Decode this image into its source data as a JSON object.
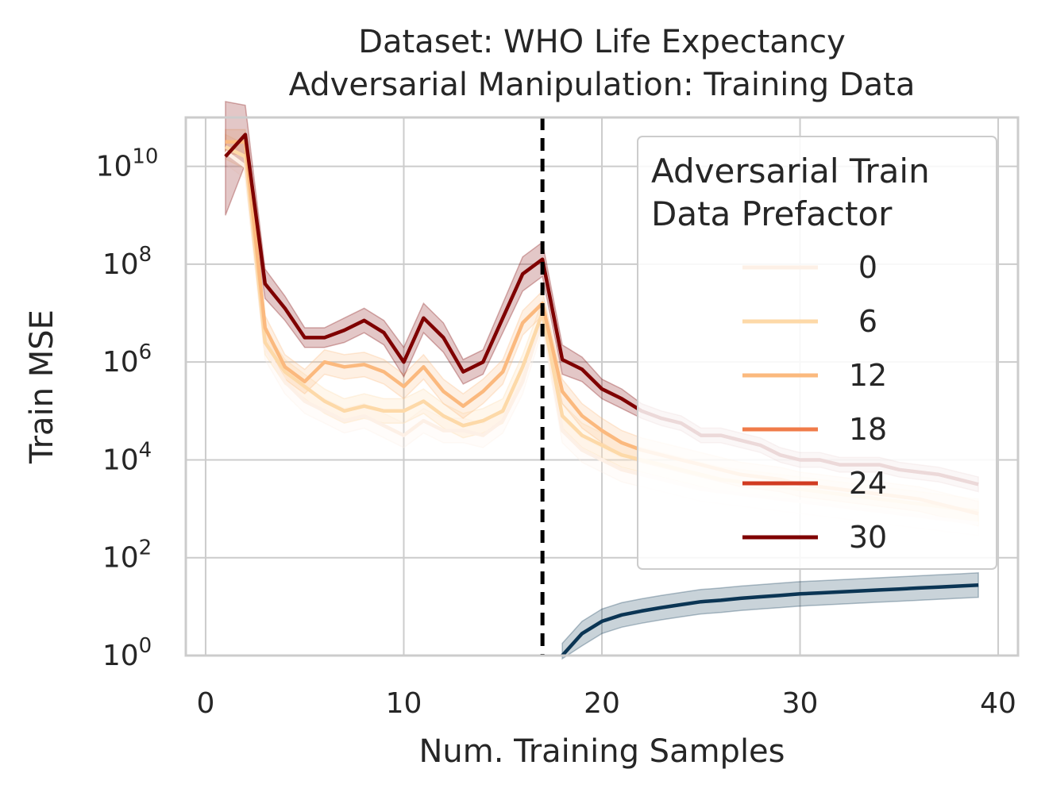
{
  "chart_data": {
    "type": "line",
    "title_lines": [
      "Dataset: WHO Life Expectancy",
      "Adversarial Manipulation: Training Data"
    ],
    "xlabel": "Num. Training Samples",
    "ylabel": "Train MSE",
    "xlim": [
      -1,
      41
    ],
    "ylim_log10": [
      0,
      11
    ],
    "y_scale": "log",
    "xticks": [
      0,
      10,
      20,
      30,
      40
    ],
    "yticks": [
      {
        "base": "10",
        "exp": "0",
        "log": 0
      },
      {
        "base": "10",
        "exp": "2",
        "log": 2
      },
      {
        "base": "10",
        "exp": "4",
        "log": 4
      },
      {
        "base": "10",
        "exp": "6",
        "log": 6
      },
      {
        "base": "10",
        "exp": "8",
        "log": 8
      },
      {
        "base": "10",
        "exp": "10",
        "log": 10
      }
    ],
    "grid": true,
    "vline_x": 17,
    "legend": {
      "title_lines": [
        "Adversarial Train",
        "Data Prefactor"
      ],
      "placement": "upper right"
    },
    "x": [
      1,
      2,
      3,
      4,
      5,
      6,
      7,
      8,
      9,
      10,
      11,
      12,
      13,
      14,
      15,
      16,
      17,
      18,
      19,
      20,
      21,
      22,
      23,
      24,
      25,
      26,
      27,
      28,
      29,
      30,
      31,
      32,
      33,
      34,
      35,
      36,
      37,
      38,
      39
    ],
    "series": [
      {
        "name": "0",
        "color": "#fdf0e6",
        "log10_values": [
          10.3,
          10.0,
          6.3,
          5.6,
          5.2,
          5.0,
          4.8,
          4.9,
          4.7,
          4.5,
          4.8,
          4.6,
          4.6,
          4.5,
          4.8,
          5.6,
          6.9,
          4.6,
          4.2,
          4.0,
          3.8,
          3.7,
          3.6,
          3.5,
          3.4,
          3.35,
          3.3,
          3.25,
          3.2,
          3.15,
          3.1,
          3.05,
          3.0,
          2.95,
          2.9,
          2.85,
          2.8,
          2.75,
          2.7
        ]
      },
      {
        "name": "6",
        "color": "#fdd9a8",
        "log10_values": [
          10.4,
          10.2,
          6.4,
          5.8,
          5.5,
          5.2,
          5.0,
          5.1,
          5.0,
          5.0,
          5.2,
          4.9,
          4.7,
          4.8,
          5.0,
          5.9,
          7.0,
          4.9,
          4.5,
          4.3,
          4.1,
          4.0,
          3.9,
          3.8,
          3.7,
          3.6,
          3.55,
          3.5,
          3.45,
          3.4,
          3.35,
          3.3,
          3.25,
          3.2,
          3.15,
          3.1,
          3.05,
          3.0,
          2.95
        ]
      },
      {
        "name": "12",
        "color": "#fbb97e",
        "log10_values": [
          10.5,
          10.5,
          6.7,
          5.9,
          5.6,
          6.0,
          5.9,
          5.95,
          5.8,
          5.5,
          5.9,
          5.4,
          5.1,
          5.4,
          5.8,
          6.8,
          7.2,
          5.4,
          4.9,
          4.6,
          4.35,
          4.2,
          4.1,
          4.0,
          3.9,
          3.8,
          3.7,
          3.65,
          3.6,
          3.5,
          3.45,
          3.4,
          3.35,
          3.3,
          3.25,
          3.2,
          3.1,
          3.0,
          2.9
        ]
      },
      {
        "name": "18",
        "color": "#f07c4a",
        "log10_values": []
      },
      {
        "name": "24",
        "color": "#d13b21",
        "log10_values": []
      },
      {
        "name": "30",
        "color": "#7f0000",
        "log10_values": [
          10.2,
          10.65,
          7.6,
          7.1,
          6.5,
          6.5,
          6.65,
          6.85,
          6.6,
          6.0,
          6.9,
          6.5,
          5.8,
          6.0,
          6.9,
          7.8,
          8.1,
          6.05,
          5.85,
          5.45,
          5.25,
          5.0,
          4.85,
          4.75,
          4.5,
          4.5,
          4.4,
          4.3,
          4.1,
          4.0,
          4.0,
          3.9,
          3.9,
          3.9,
          3.8,
          3.75,
          3.7,
          3.6,
          3.5
        ],
        "band_width": [
          1.2,
          0.6,
          0.3,
          0.25,
          0.2,
          0.2,
          0.25,
          0.25,
          0.25,
          0.3,
          0.3,
          0.3,
          0.25,
          0.25,
          0.3,
          0.35,
          0.35,
          0.3,
          0.25,
          0.2,
          0.2,
          0.15,
          0.15,
          0.15,
          0.15,
          0.15,
          0.15,
          0.15,
          0.15,
          0.15,
          0.15,
          0.15,
          0.15,
          0.15,
          0.15,
          0.15,
          0.15,
          0.15,
          0.15
        ]
      },
      {
        "name": "",
        "color": "#0b3554",
        "in_legend": false,
        "x": [
          18,
          19,
          20,
          21,
          22,
          23,
          24,
          25,
          26,
          27,
          28,
          29,
          30,
          31,
          32,
          33,
          34,
          35,
          36,
          37,
          38,
          39
        ],
        "log10_values": [
          0.0,
          0.45,
          0.7,
          0.83,
          0.91,
          0.98,
          1.04,
          1.1,
          1.13,
          1.17,
          1.2,
          1.23,
          1.26,
          1.28,
          1.3,
          1.32,
          1.34,
          1.36,
          1.38,
          1.4,
          1.42,
          1.44
        ]
      }
    ]
  }
}
